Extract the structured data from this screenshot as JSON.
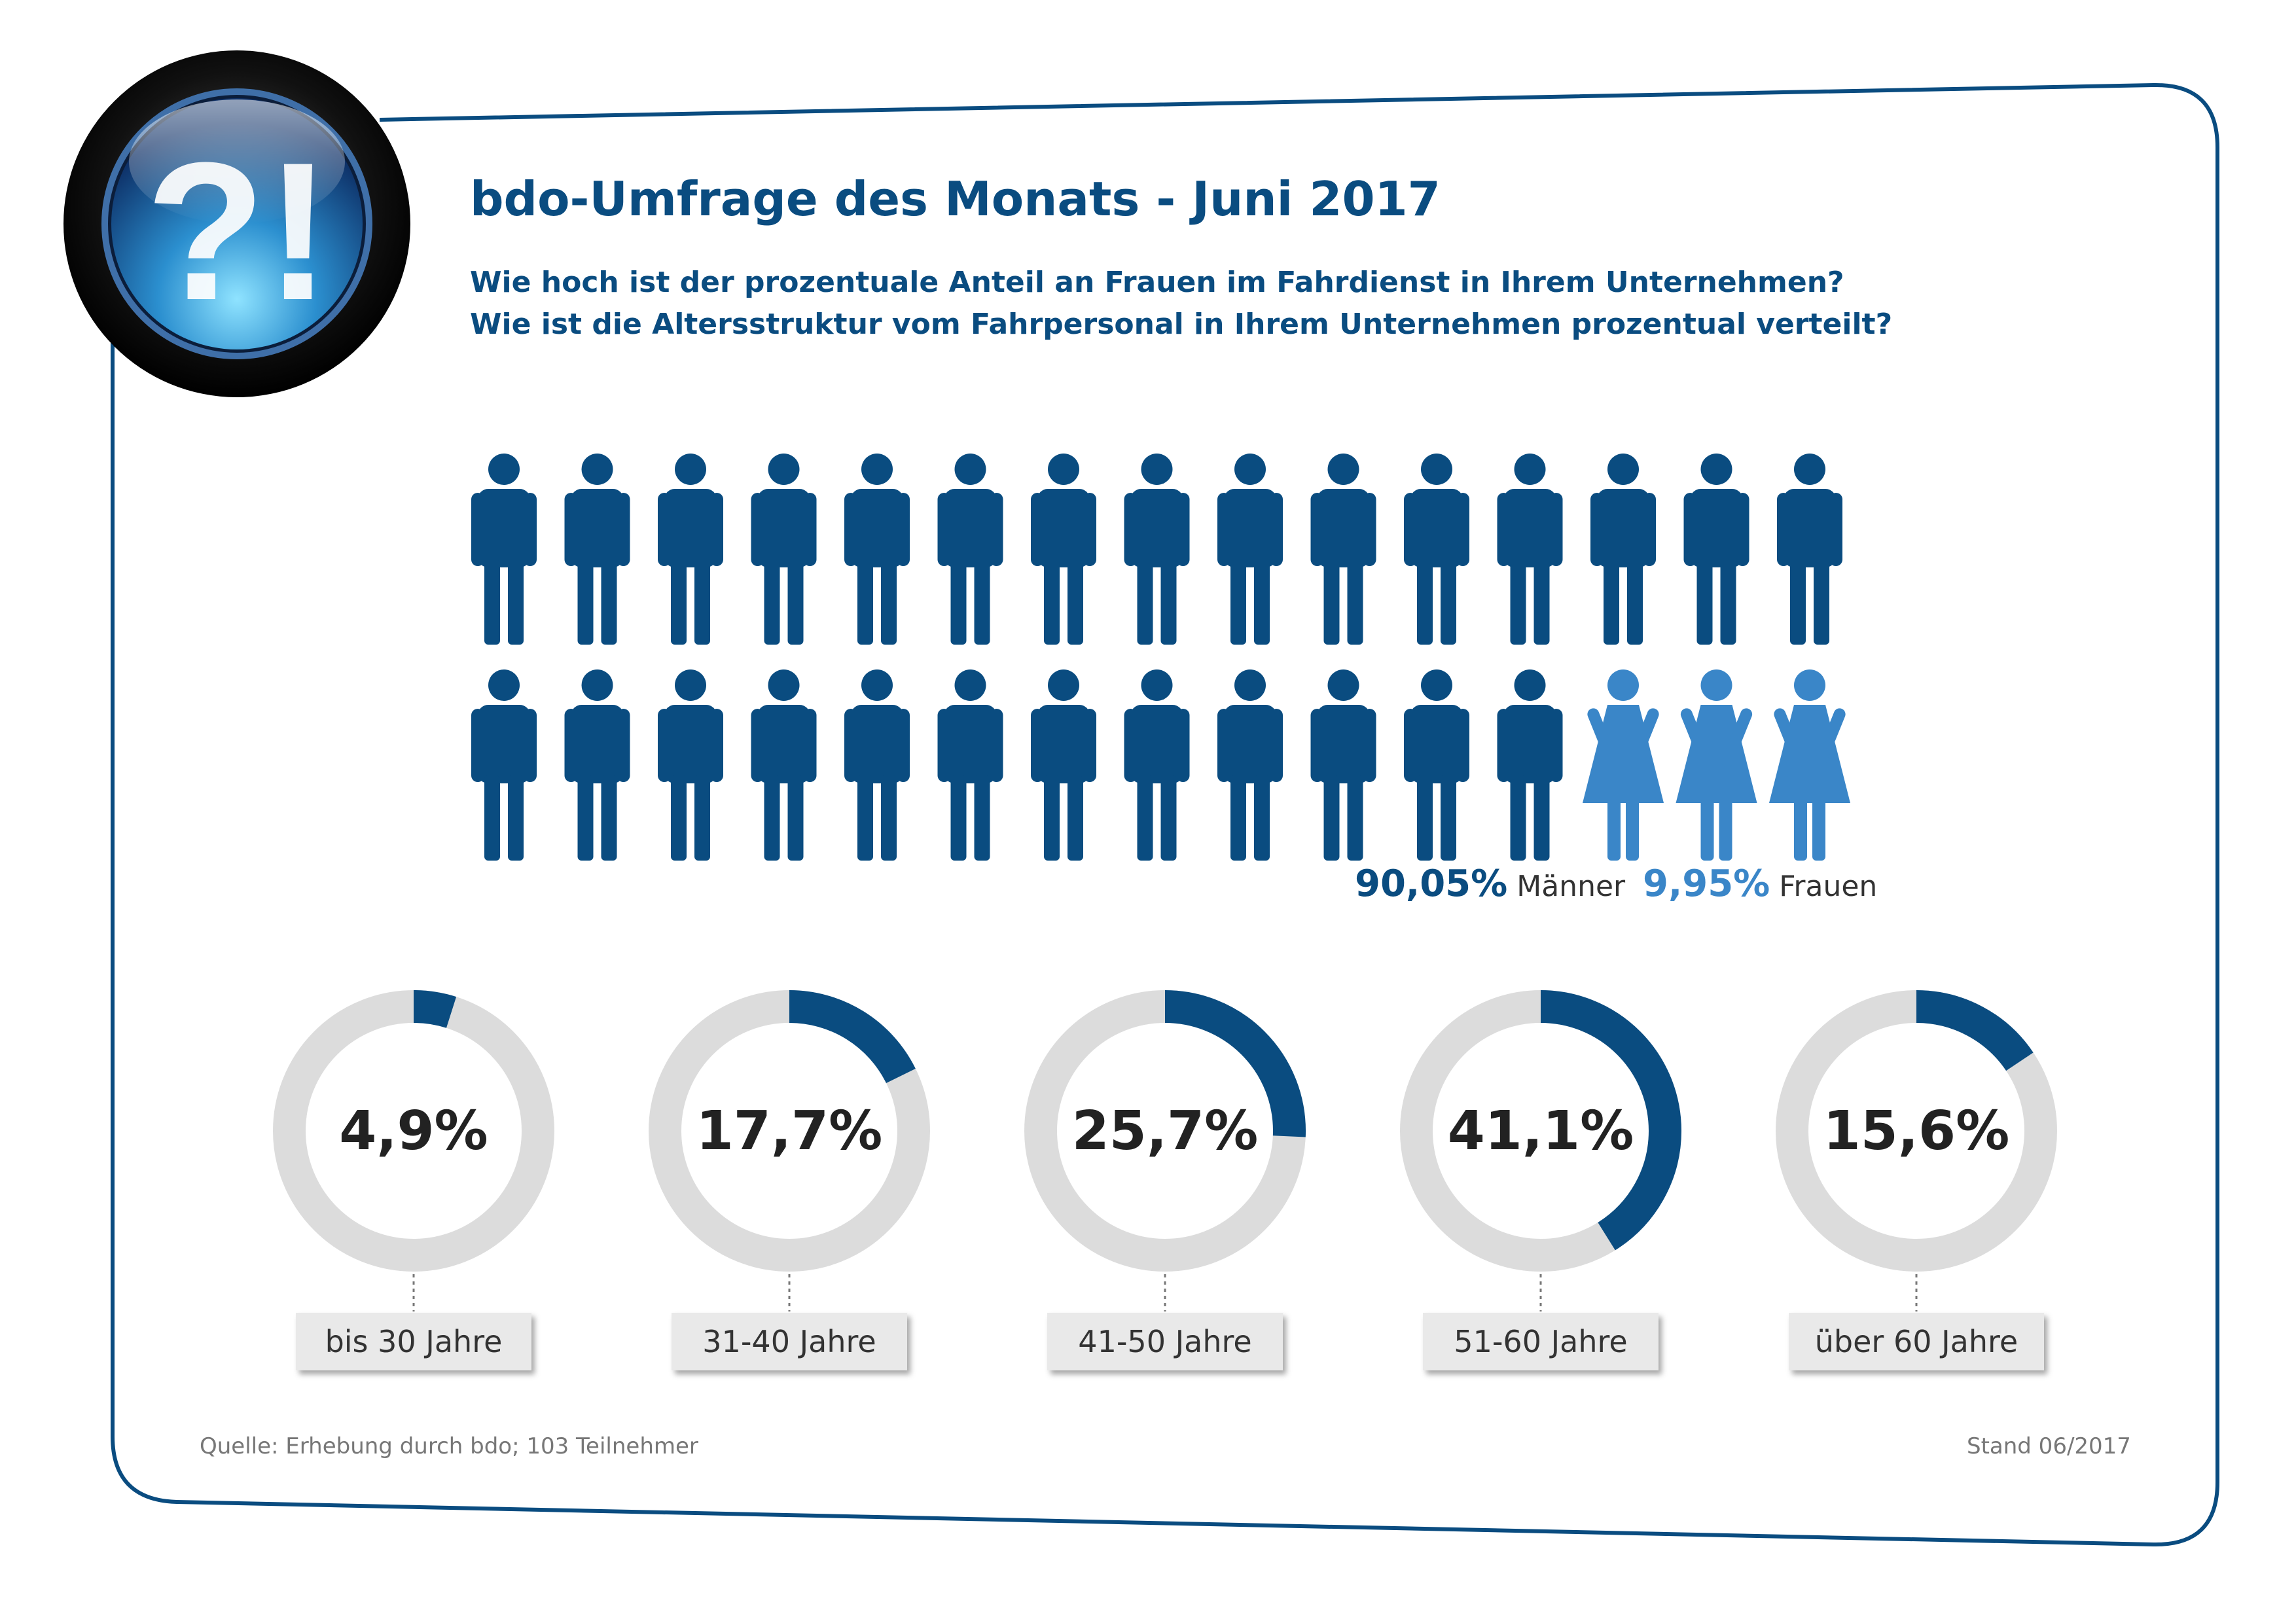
{
  "title": "bdo-Umfrage des Monats - Juni 2017",
  "questions": [
    "Wie hoch ist der prozentuale Anteil an Frauen im Fahrdienst in Ihrem Unternehmen?",
    "Wie ist die Altersstruktur vom Fahrpersonal in Ihrem Unternehmen prozentual verteilt?"
  ],
  "logo": {
    "text": "?!",
    "icon": "question-exclamation-badge-icon"
  },
  "colors": {
    "men": "#0a4c80",
    "women": "#3a86c8",
    "ring_bg": "#dcdcdc",
    "ring_fill": "#0a4c80",
    "frame": "#0a4c80"
  },
  "chart_data": [
    {
      "type": "pictogram",
      "icon_count": 30,
      "men_icons": 27,
      "women_icons": 3,
      "series": [
        {
          "name": "Männer",
          "value": 90.05,
          "label": "90,05%"
        },
        {
          "name": "Frauen",
          "value": 9.95,
          "label": "9,95%"
        }
      ]
    },
    {
      "type": "donut",
      "categories": [
        "bis 30 Jahre",
        "31-40 Jahre",
        "41-50 Jahre",
        "51-60 Jahre",
        "über 60 Jahre"
      ],
      "values": [
        4.9,
        17.7,
        25.7,
        41.1,
        15.6
      ],
      "labels": [
        "4,9%",
        "17,7%",
        "25,7%",
        "41,1%",
        "15,6%"
      ]
    }
  ],
  "footer": {
    "source": "Quelle: Erhebung durch bdo; 103 Teilnehmer",
    "stand": "Stand 06/2017"
  }
}
